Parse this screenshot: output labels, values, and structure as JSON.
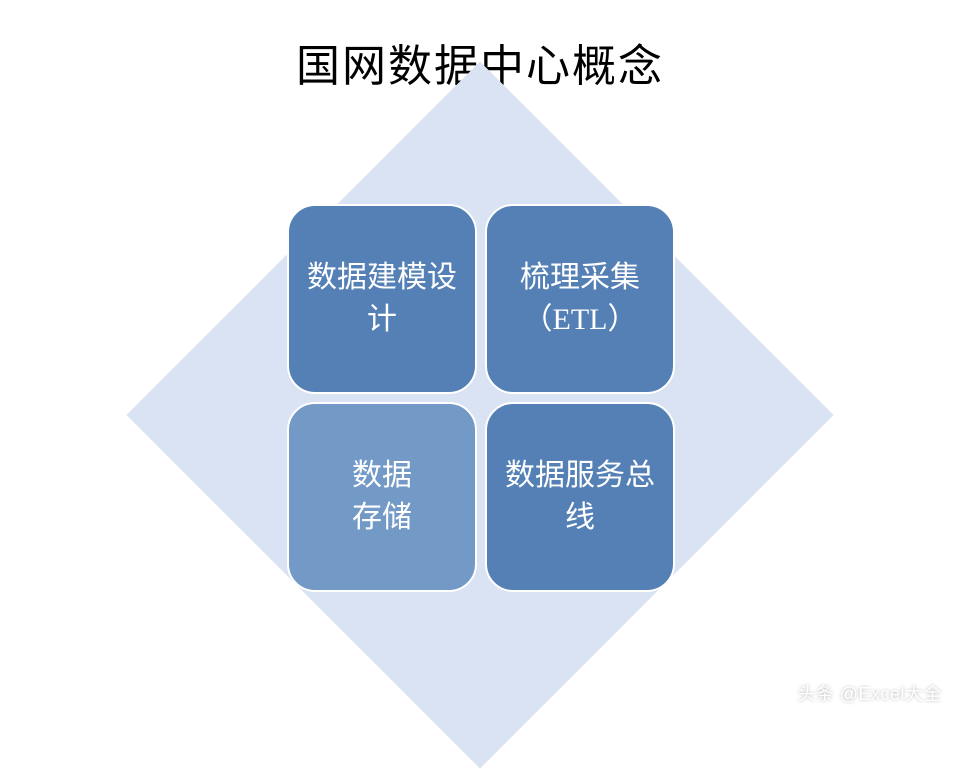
{
  "title": "国网数据中心概念",
  "diagram": {
    "type": "infographic",
    "background_color": "#ffffff",
    "diamond_color": "#dae3f3",
    "box_border_color": "#ffffff",
    "box_border_radius": 28,
    "box_text_color": "#ffffff",
    "box_fontsize": 30,
    "title_fontsize": 44,
    "title_color": "#000000",
    "boxes": [
      {
        "label": "数据建模设计",
        "color": "#5480b5"
      },
      {
        "label": "梳理采集（ETL）",
        "color": "#5480b5"
      },
      {
        "label": "数据\n存储",
        "color": "#7399c6"
      },
      {
        "label": "数据服务总线",
        "color": "#5480b5"
      }
    ]
  },
  "watermark": "头条 @Excel大全"
}
